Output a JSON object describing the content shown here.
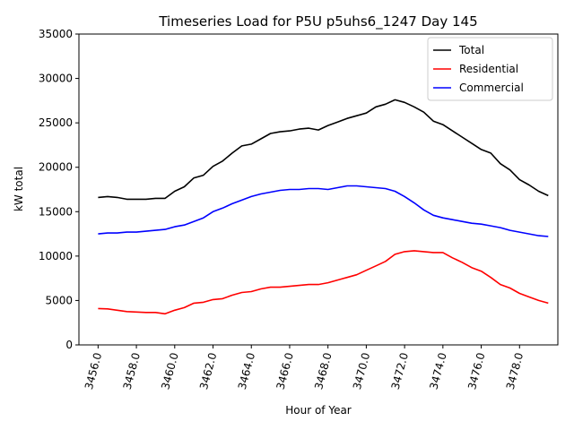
{
  "chart_data": {
    "type": "line",
    "title": "Timeseries Load for P5U p5uhs6_1247  Day 145",
    "xlabel": "Hour of Year",
    "ylabel": "kW total",
    "xlim": [
      3455.0,
      3480.0
    ],
    "ylim": [
      0,
      35000
    ],
    "xticks": [
      3456.0,
      3458.0,
      3460.0,
      3462.0,
      3464.0,
      3466.0,
      3468.0,
      3470.0,
      3472.0,
      3474.0,
      3476.0,
      3478.0
    ],
    "xtick_labels": [
      "3456.0",
      "3458.0",
      "3460.0",
      "3462.0",
      "3464.0",
      "3466.0",
      "3468.0",
      "3470.0",
      "3472.0",
      "3474.0",
      "3476.0",
      "3478.0"
    ],
    "yticks": [
      0,
      5000,
      10000,
      15000,
      20000,
      25000,
      30000,
      35000
    ],
    "ytick_labels": [
      "0",
      "5000",
      "10000",
      "15000",
      "20000",
      "25000",
      "30000",
      "35000"
    ],
    "legend_position": "top-right",
    "x": [
      3456.0,
      3456.5,
      3457.0,
      3457.5,
      3458.0,
      3458.5,
      3459.0,
      3459.5,
      3460.0,
      3460.5,
      3461.0,
      3461.5,
      3462.0,
      3462.5,
      3463.0,
      3463.5,
      3464.0,
      3464.5,
      3465.0,
      3465.5,
      3466.0,
      3466.5,
      3467.0,
      3467.5,
      3468.0,
      3468.5,
      3469.0,
      3469.5,
      3470.0,
      3470.5,
      3471.0,
      3471.5,
      3472.0,
      3472.5,
      3473.0,
      3473.5,
      3474.0,
      3474.5,
      3475.0,
      3475.5,
      3476.0,
      3476.5,
      3477.0,
      3477.5,
      3478.0,
      3478.5,
      3479.0,
      3479.5
    ],
    "series": [
      {
        "name": "Total",
        "color": "#000000",
        "values": [
          16600,
          16700,
          16600,
          16400,
          16400,
          16400,
          16500,
          16500,
          17300,
          17800,
          18800,
          19100,
          20100,
          20700,
          21600,
          22400,
          22600,
          23200,
          23800,
          24000,
          24100,
          24300,
          24400,
          24200,
          24700,
          25100,
          25500,
          25800,
          26100,
          26800,
          27100,
          27600,
          27300,
          26800,
          26200,
          25200,
          24800,
          24100,
          23400,
          22700,
          22000,
          21600,
          20400,
          19700,
          18600,
          18000,
          17300,
          16800
        ]
      },
      {
        "name": "Residential",
        "color": "#ff0000",
        "values": [
          4100,
          4050,
          3900,
          3750,
          3700,
          3650,
          3650,
          3500,
          3900,
          4200,
          4700,
          4800,
          5100,
          5200,
          5600,
          5900,
          6000,
          6300,
          6500,
          6500,
          6600,
          6700,
          6800,
          6800,
          7000,
          7300,
          7600,
          7900,
          8400,
          8900,
          9400,
          10200,
          10500,
          10600,
          10500,
          10400,
          10400,
          9800,
          9300,
          8700,
          8300,
          7600,
          6800,
          6400,
          5800,
          5400,
          5000,
          4700
        ]
      },
      {
        "name": "Commercial",
        "color": "#0000ff",
        "values": [
          12500,
          12600,
          12600,
          12700,
          12700,
          12800,
          12900,
          13000,
          13300,
          13500,
          13900,
          14300,
          15000,
          15400,
          15900,
          16300,
          16700,
          17000,
          17200,
          17400,
          17500,
          17500,
          17600,
          17600,
          17500,
          17700,
          17900,
          17900,
          17800,
          17700,
          17600,
          17300,
          16700,
          16000,
          15200,
          14600,
          14300,
          14100,
          13900,
          13700,
          13600,
          13400,
          13200,
          12900,
          12700,
          12500,
          12300,
          12200
        ]
      }
    ]
  }
}
